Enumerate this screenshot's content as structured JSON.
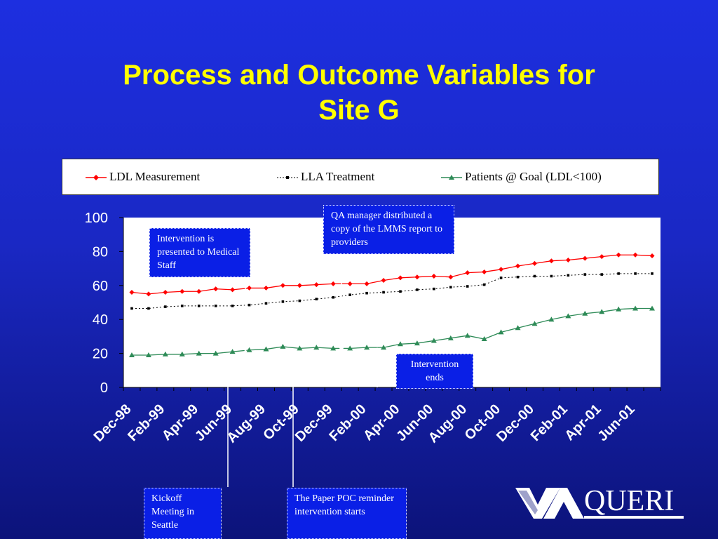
{
  "slide": {
    "title_line1": "Process and Outcome Variables for",
    "title_line2": "Site G"
  },
  "legend": [
    {
      "label": "LDL Measurement",
      "color": "#ff0000",
      "marker": "diamond"
    },
    {
      "label": "LLA Treatment",
      "color": "#000000",
      "marker": "square"
    },
    {
      "label": "Patients @ Goal (LDL<100)",
      "color": "#2e8b57",
      "marker": "triangle"
    }
  ],
  "annotations": {
    "qa_manager": "QA manager distributed a copy of the LMMS report to providers",
    "intervention_presented": "Intervention is presented to Medical Staff",
    "intervention_ends": "Intervention ends",
    "kickoff": "Kickoff Meeting in Seattle",
    "paper_poc": "The Paper POC reminder intervention starts"
  },
  "logo": {
    "text": "QUERI"
  },
  "chart_data": {
    "type": "line",
    "ylim": [
      0,
      100
    ],
    "yticks": [
      0,
      20,
      40,
      60,
      80,
      100
    ],
    "tick_labels": [
      "Dec-98",
      "Feb-99",
      "Apr-99",
      "Jun-99",
      "Aug-99",
      "Oct-99",
      "Dec-99",
      "Feb-00",
      "Apr-00",
      "Jun-00",
      "Aug-00",
      "Oct-00",
      "Dec-00",
      "Feb-01",
      "Apr-01",
      "Jun-01"
    ],
    "x": [
      "Dec-98",
      "Jan-99",
      "Feb-99",
      "Mar-99",
      "Apr-99",
      "May-99",
      "Jun-99",
      "Jul-99",
      "Aug-99",
      "Sep-99",
      "Oct-99",
      "Nov-99",
      "Dec-99",
      "Jan-00",
      "Feb-00",
      "Mar-00",
      "Apr-00",
      "May-00",
      "Jun-00",
      "Jul-00",
      "Aug-00",
      "Sep-00",
      "Oct-00",
      "Nov-00",
      "Dec-00",
      "Jan-01",
      "Feb-01",
      "Mar-01",
      "Apr-01",
      "May-01",
      "Jun-01",
      "Jul-01"
    ],
    "series": [
      {
        "name": "LDL Measurement",
        "color": "#ff0000",
        "marker": "diamond",
        "values": [
          56,
          55,
          56,
          56.5,
          56.5,
          58,
          57.5,
          58.5,
          58.5,
          60,
          60,
          60.5,
          61,
          61,
          61,
          63,
          64.5,
          65,
          65.5,
          65,
          67.5,
          68,
          69.5,
          71.5,
          73,
          74.5,
          75,
          76,
          77,
          78,
          78,
          77.5
        ]
      },
      {
        "name": "LLA Treatment",
        "color": "#000000",
        "marker": "square",
        "values": [
          46.5,
          46.5,
          47.5,
          48,
          48,
          48,
          48,
          48.5,
          49.5,
          50.5,
          51,
          52,
          53,
          54.5,
          55.5,
          56,
          56.5,
          57.5,
          58,
          59,
          59.5,
          60.5,
          64.5,
          65,
          65.5,
          65.5,
          66,
          66.5,
          66.5,
          67,
          67,
          67
        ]
      },
      {
        "name": "Patients @ Goal (LDL<100)",
        "color": "#2e8b57",
        "marker": "triangle",
        "values": [
          19,
          19,
          19.5,
          19.5,
          20,
          20,
          21,
          22,
          22.5,
          24,
          23,
          23.5,
          23,
          23,
          23.5,
          23.5,
          25.5,
          26,
          27.5,
          29,
          30.5,
          28.5,
          32.5,
          35,
          37.5,
          40,
          42,
          43.5,
          44.5,
          46,
          46.5,
          46.5
        ]
      }
    ]
  }
}
